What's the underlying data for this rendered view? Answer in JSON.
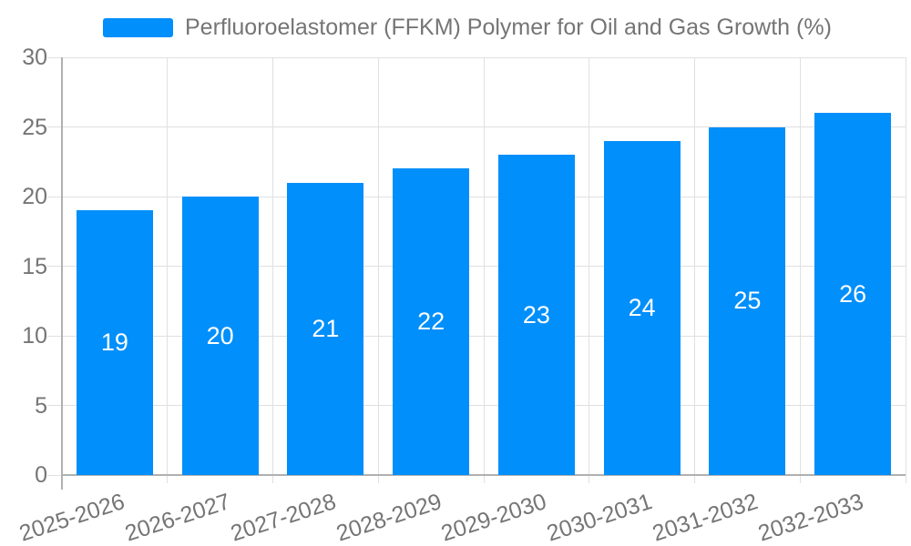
{
  "chart_data": {
    "type": "bar",
    "title": "Perfluoroelastomer (FFKM) Polymer for Oil and Gas Growth (%)",
    "categories": [
      "2025-2026",
      "2026-2027",
      "2027-2028",
      "2028-2029",
      "2029-2030",
      "2030-2031",
      "2031-2032",
      "2032-2033"
    ],
    "series": [
      {
        "name": "Perfluoroelastomer (FFKM) Polymer for Oil and Gas Growth (%)",
        "values": [
          19,
          20,
          21,
          22,
          23,
          24,
          25,
          26
        ]
      }
    ],
    "y_ticks": [
      0,
      5,
      10,
      15,
      20,
      25,
      30
    ],
    "ylim": [
      0,
      30
    ],
    "xlabel": "",
    "ylabel": "",
    "grid": true,
    "legend_position": "top",
    "data_labels": "inside-center"
  },
  "colors": {
    "bar": "#008FFB",
    "grid": "#e0e0e0",
    "axis": "#b0b0b0",
    "tick_label": "#757575",
    "legend_text": "#757575",
    "data_label": "#ffffff",
    "background": "#ffffff"
  }
}
